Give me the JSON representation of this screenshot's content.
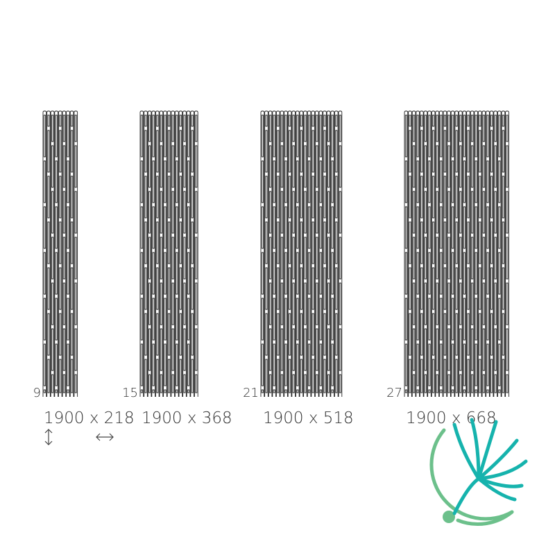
{
  "items": [
    {
      "count": 9,
      "size": "1900 x 218"
    },
    {
      "count": 15,
      "size": "1900 x 368"
    },
    {
      "count": 21,
      "size": "1900 x 518"
    },
    {
      "count": 27,
      "size": "1900 x 668"
    }
  ]
}
